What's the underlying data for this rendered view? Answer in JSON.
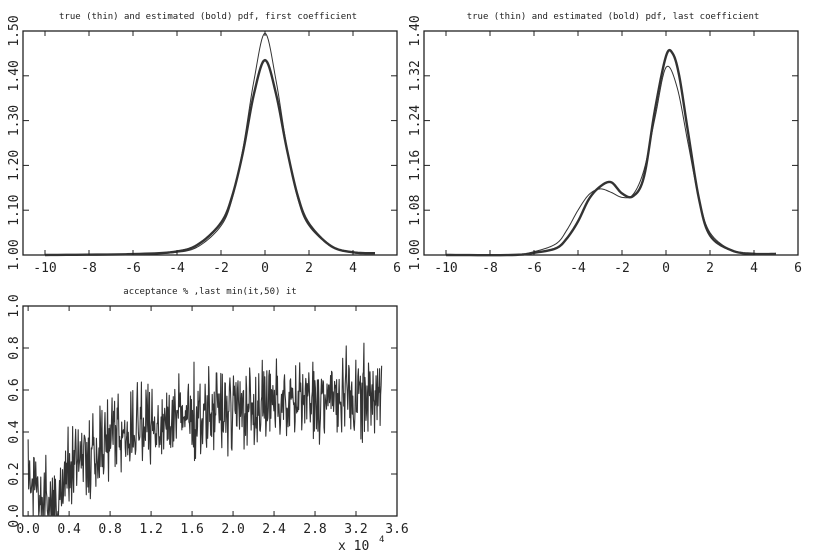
{
  "chart_data": [
    {
      "type": "line",
      "title": "true (thin) and estimated (bold) pdf, first coefficient",
      "xlim": [
        -11,
        6
      ],
      "ylim": [
        1.0,
        1.5
      ],
      "x_ticks": [
        -10,
        -8,
        -6,
        -4,
        -2,
        0,
        2,
        4,
        6
      ],
      "x_tick_labels": [
        "-10",
        "-8",
        "-6",
        "-4",
        "-2",
        "0",
        "2",
        "4",
        "6"
      ],
      "y_ticks": [
        1.0,
        1.1,
        1.2,
        1.3,
        1.4,
        1.5
      ],
      "y_tick_labels": [
        "1.00",
        "1.10",
        "1.20",
        "1.30",
        "1.40",
        "1.50"
      ],
      "series": [
        {
          "name": "true (thin)",
          "stroke": "#333333",
          "width": 1.0,
          "x": [
            -10,
            -6,
            -4,
            -3,
            -2,
            -1.5,
            -1,
            -0.5,
            0,
            0.5,
            1,
            1.5,
            2,
            3,
            4,
            5
          ],
          "y": [
            1.0,
            1.002,
            1.006,
            1.02,
            1.065,
            1.124,
            1.238,
            1.39,
            1.495,
            1.39,
            1.238,
            1.124,
            1.065,
            1.02,
            1.006,
            1.004
          ]
        },
        {
          "name": "estimated (bold)",
          "stroke": "#333333",
          "width": 2.4,
          "x": [
            -10,
            -6,
            -4,
            -3,
            -2,
            -1.5,
            -1,
            -0.5,
            0,
            0.5,
            1,
            1.5,
            2,
            3,
            4,
            5
          ],
          "y": [
            1.0,
            1.002,
            1.008,
            1.025,
            1.072,
            1.13,
            1.23,
            1.36,
            1.435,
            1.36,
            1.235,
            1.13,
            1.07,
            1.02,
            1.006,
            1.004
          ]
        }
      ]
    },
    {
      "type": "line",
      "title": "true (thin) and estimated (bold) pdf, last coefficient",
      "xlim": [
        -11,
        6
      ],
      "ylim": [
        1.0,
        1.4
      ],
      "x_ticks": [
        -10,
        -8,
        -6,
        -4,
        -2,
        0,
        2,
        4,
        6
      ],
      "x_tick_labels": [
        "-10",
        "-8",
        "-6",
        "-4",
        "-2",
        "0",
        "2",
        "4",
        "6"
      ],
      "y_ticks": [
        1.0,
        1.08,
        1.16,
        1.24,
        1.32,
        1.4
      ],
      "y_tick_labels": [
        "1.00",
        "1.08",
        "1.16",
        "1.24",
        "1.32",
        "1.40"
      ],
      "series": [
        {
          "name": "true (thin)",
          "stroke": "#333333",
          "width": 1.0,
          "x": [
            -10,
            -7,
            -6,
            -5,
            -4.5,
            -4,
            -3.5,
            -3,
            -2.5,
            -2,
            -1.5,
            -1,
            -0.5,
            0,
            0.5,
            1,
            1.5,
            2,
            3,
            4,
            5
          ],
          "y": [
            1.0,
            1.0,
            1.006,
            1.02,
            1.045,
            1.08,
            1.108,
            1.118,
            1.112,
            1.103,
            1.108,
            1.152,
            1.245,
            1.335,
            1.3,
            1.2,
            1.1,
            1.04,
            1.008,
            1.002,
            1.002
          ]
        },
        {
          "name": "estimated (bold)",
          "stroke": "#333333",
          "width": 2.4,
          "x": [
            -10,
            -7,
            -6,
            -5,
            -4.5,
            -4,
            -3.5,
            -3,
            -2.5,
            -2,
            -1.5,
            -1,
            -0.5,
            0,
            0.3,
            0.6,
            1,
            1.5,
            2,
            3,
            4,
            5
          ],
          "y": [
            1.0,
            1.0,
            1.004,
            1.012,
            1.03,
            1.06,
            1.1,
            1.122,
            1.13,
            1.11,
            1.105,
            1.14,
            1.26,
            1.355,
            1.36,
            1.32,
            1.22,
            1.1,
            1.035,
            1.008,
            1.002,
            1.002
          ]
        }
      ]
    },
    {
      "type": "line",
      "title": "acceptance % ,last min(it,50) it",
      "xlim": [
        -500,
        36000
      ],
      "ylim": [
        0,
        1.0
      ],
      "x_ticks": [
        0,
        4000,
        8000,
        12000,
        16000,
        20000,
        24000,
        28000,
        32000,
        36000
      ],
      "x_tick_labels": [
        "0.0",
        "0.4",
        "0.8",
        "1.2",
        "1.6",
        "2.0",
        "2.4",
        "2.8",
        "3.2",
        "3.6"
      ],
      "x_multiplier_label": "x 10",
      "x_multiplier_exp": "4",
      "y_ticks": [
        0,
        0.2,
        0.4,
        0.6,
        0.8,
        1.0
      ],
      "y_tick_labels": [
        "0.0",
        "0.2",
        "0.4",
        "0.6",
        "0.8",
        "1.0"
      ],
      "trend_x": [
        0,
        1000,
        2000,
        3000,
        4000,
        6000,
        8000,
        10000,
        12000,
        14000,
        16000,
        18000,
        20000,
        24000,
        28000,
        32000,
        34500
      ],
      "trend_y": [
        0.2,
        0.12,
        0.08,
        0.12,
        0.22,
        0.3,
        0.36,
        0.4,
        0.43,
        0.46,
        0.48,
        0.5,
        0.51,
        0.53,
        0.55,
        0.57,
        0.57
      ],
      "noise_amplitude": 0.12,
      "n_samples": 700,
      "stroke": "#333333"
    }
  ]
}
